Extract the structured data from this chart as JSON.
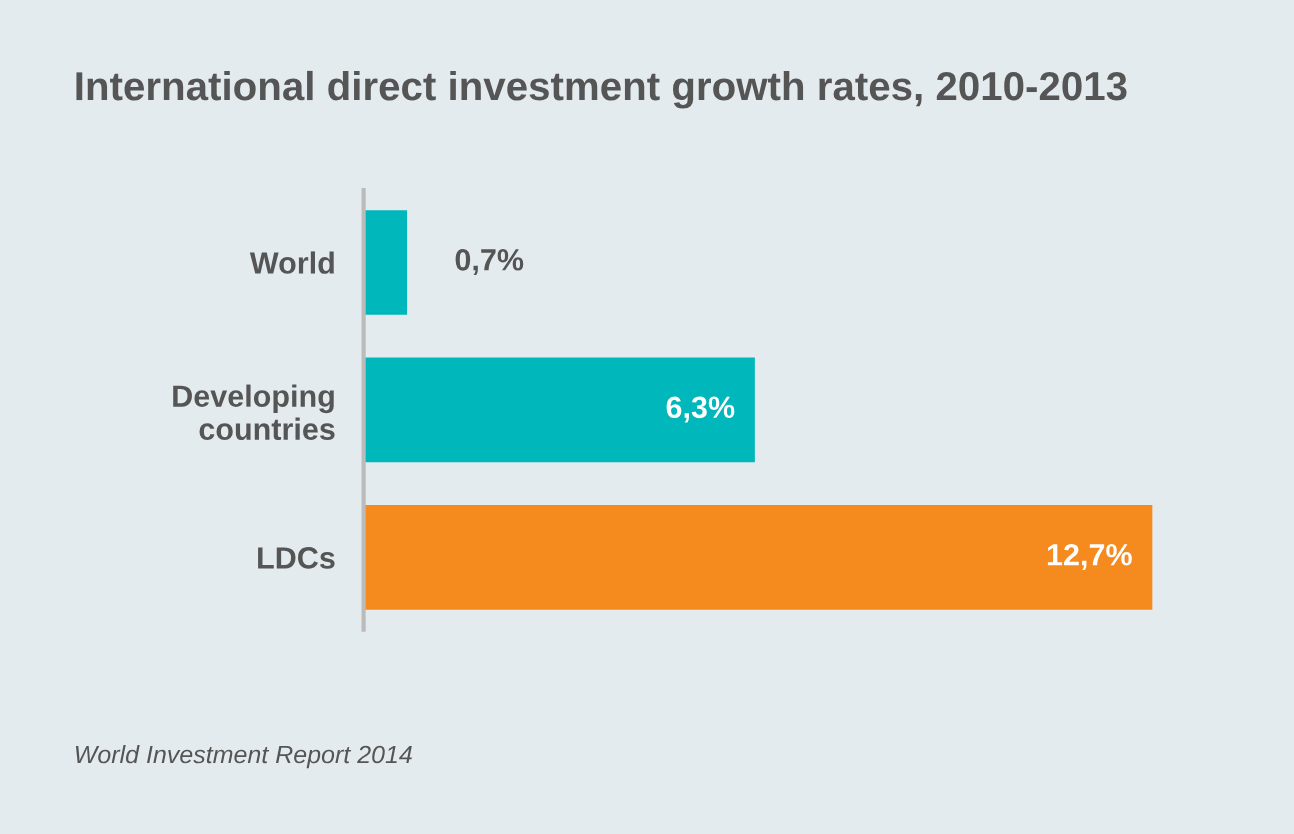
{
  "chart_data": {
    "type": "bar",
    "orientation": "horizontal",
    "title": "International direct investment growth rates, 2010-2013",
    "categories": [
      "World",
      "Developing\ncountries",
      "LDCs"
    ],
    "values": [
      0.7,
      6.3,
      12.7
    ],
    "colors": [
      "#00b8bb",
      "#00b8bb",
      "#f58a1f"
    ],
    "value_labels": [
      "0,7%",
      "6,3%",
      "12,7%"
    ],
    "grid": false,
    "legend": false,
    "annotations": [
      "World Investment Report 2014"
    ]
  }
}
